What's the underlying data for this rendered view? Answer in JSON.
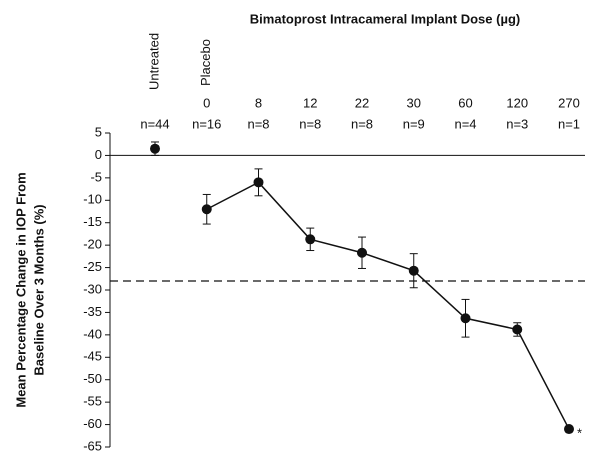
{
  "chart_data": {
    "type": "line",
    "title": "Bimatoprost Intracameral Implant Dose (µg)",
    "y_label": [
      "Mean Percentage Change in IOP From",
      "Baseline Over 3 Months (%)"
    ],
    "untreated": {
      "label": "Untreated",
      "n_label": "n=44",
      "value": 1.5,
      "error": 1.5
    },
    "placebo_label": "Placebo",
    "categories": [
      "0",
      "8",
      "12",
      "22",
      "30",
      "60",
      "120",
      "270"
    ],
    "n_labels": [
      "n=16",
      "n=8",
      "n=8",
      "n=8",
      "n=9",
      "n=4",
      "n=3",
      "n=1"
    ],
    "values": [
      -12,
      -6,
      -18.7,
      -21.7,
      -25.7,
      -36.3,
      -38.8,
      -61
    ],
    "errors": [
      3.3,
      3,
      2.5,
      3.5,
      3.8,
      4.2,
      1.5,
      null
    ],
    "color": "#111111",
    "reference_line": -28,
    "annotation": "*",
    "ylim": [
      -65,
      5
    ],
    "yticks": [
      5,
      0,
      -5,
      -10,
      -15,
      -20,
      -25,
      -30,
      -35,
      -40,
      -45,
      -50,
      -55,
      -60,
      -65
    ]
  }
}
